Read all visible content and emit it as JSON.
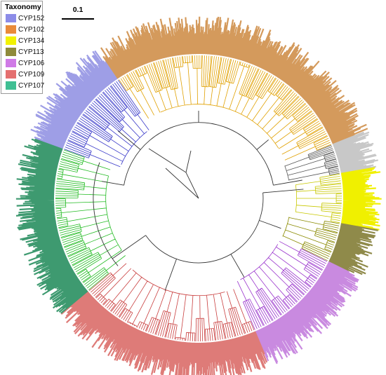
{
  "legend": {
    "title": "Taxonomy",
    "items": [
      {
        "label": "CYP152",
        "color": "#8c8ce8"
      },
      {
        "label": "CYP102",
        "color": "#e98b3a"
      },
      {
        "label": "CYP134",
        "color": "#f2f200"
      },
      {
        "label": "CYP113",
        "color": "#8f8a3a"
      },
      {
        "label": "CYP106",
        "color": "#cf7ae6"
      },
      {
        "label": "CYP109",
        "color": "#e46f6f"
      },
      {
        "label": "CYP107",
        "color": "#3fbf93"
      }
    ]
  },
  "scale_bar": {
    "label": "0.1"
  },
  "tree": {
    "type": "circular-phylogeny",
    "unlabeled_clade": {
      "color": "#c8c8c8"
    },
    "branch_colors": {
      "CYP152": "#3535c8",
      "CYP102": "#e0a000",
      "CYP134": "#c8c800",
      "CYP113": "#8a8a00",
      "CYP106": "#9933cc",
      "CYP109": "#c83c3c",
      "CYP107": "#22bb22",
      "root": "#333333"
    },
    "clade_band_colors": {
      "CYP152": "#9e9ee6",
      "CYP102": "#d49a5c",
      "CYP134": "#f0f000",
      "CYP113": "#8f8a4a",
      "CYP106": "#c98ae0",
      "CYP109": "#de7b78",
      "CYP107": "#3e9a70"
    }
  }
}
